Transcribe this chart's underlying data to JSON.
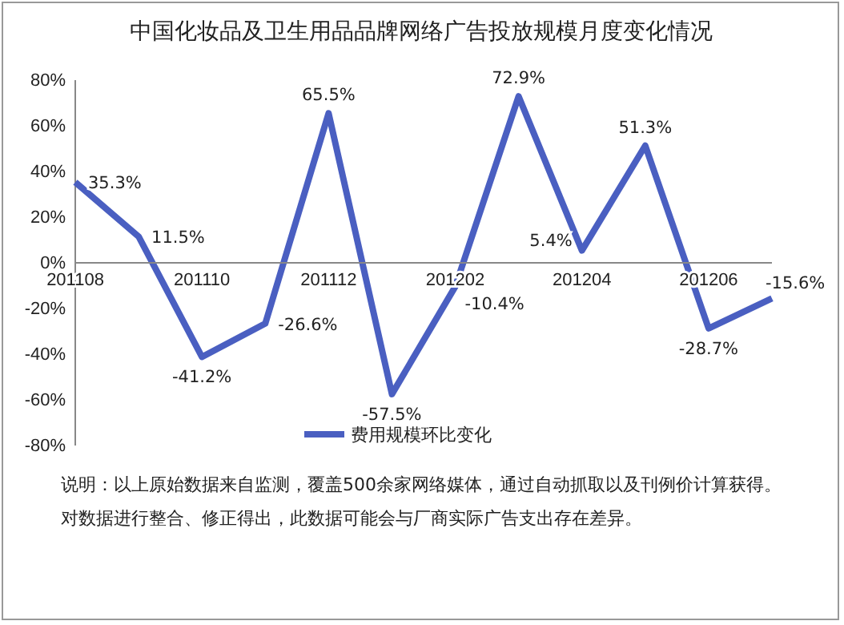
{
  "chart_data": {
    "type": "line",
    "title": "中国化妆品及卫生用品品牌网络广告投放规模月度变化情况",
    "categories": [
      "201108",
      null,
      "201110",
      null,
      "201112",
      null,
      "201202",
      null,
      "201204",
      null,
      "201206",
      null
    ],
    "series": [
      {
        "name": "费用规模环比变化",
        "color": "#4a5fc1",
        "values": [
          35.3,
          11.5,
          -41.2,
          -26.6,
          65.5,
          -57.5,
          -10.4,
          72.9,
          5.4,
          51.3,
          -28.7,
          -15.6
        ]
      }
    ],
    "value_labels": [
      "35.3%",
      "11.5%",
      "-41.2%",
      "-26.6%",
      "65.5%",
      "-57.5%",
      "-10.4%",
      "72.9%",
      "5.4%",
      "51.3%",
      "-28.7%",
      "-15.6%"
    ],
    "ylim": [
      -80,
      80
    ],
    "yticks": [
      {
        "value": -80,
        "label": "-80%"
      },
      {
        "value": -60,
        "label": "-60%"
      },
      {
        "value": -40,
        "label": "-40%"
      },
      {
        "value": -20,
        "label": "-20%"
      },
      {
        "value": 0,
        "label": "0%"
      },
      {
        "value": 20,
        "label": "20%"
      },
      {
        "value": 40,
        "label": "40%"
      },
      {
        "value": 60,
        "label": "60%"
      },
      {
        "value": 80,
        "label": "80%"
      }
    ],
    "legend": "bottom",
    "grid": false,
    "marker": "none",
    "line_style": "solid",
    "annotations": [
      "说明：以上原始数据来自监测，覆盖500余家网络媒体，通过自动抓取以及刊例价计算获得。对数据进行整合、修正得出，此数据可能会与厂商实际广告支出存在差异。"
    ]
  }
}
